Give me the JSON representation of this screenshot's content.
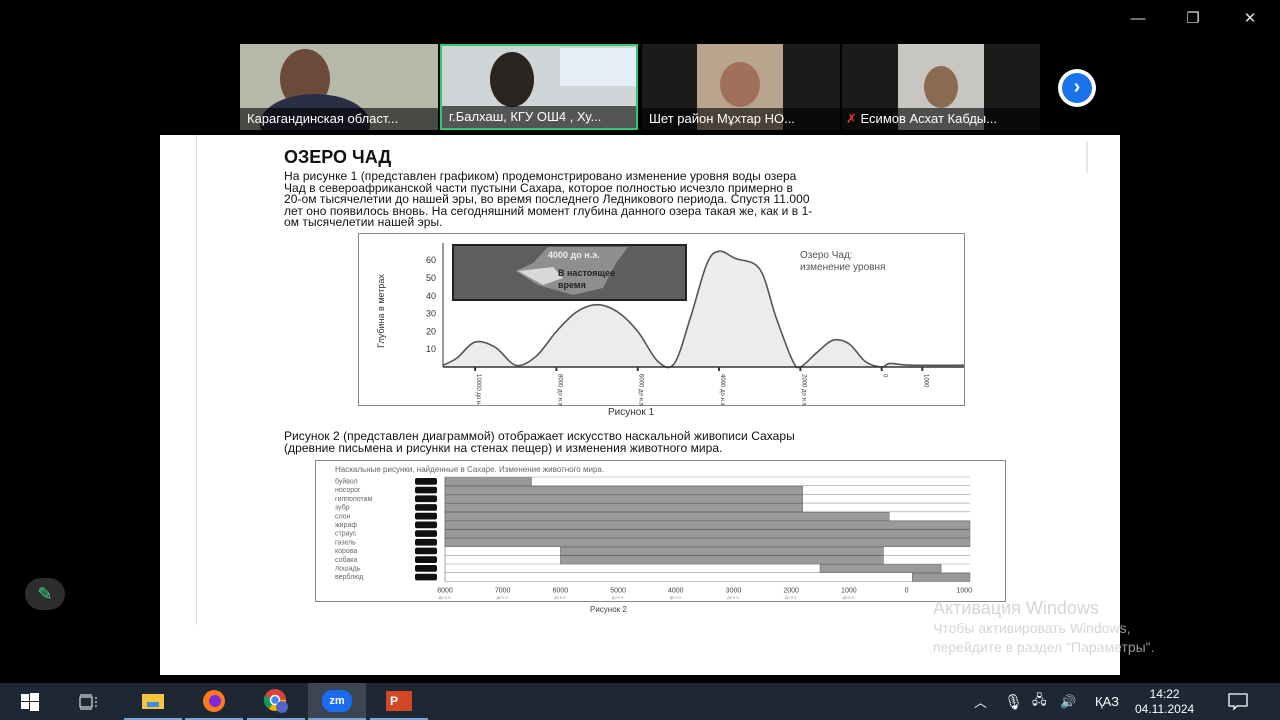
{
  "window_controls": {
    "minimize": "—",
    "restore": "❐",
    "close": "✕"
  },
  "participants": [
    {
      "name": "Карагандинская област...",
      "active": false,
      "muted": false
    },
    {
      "name": "г.Балхаш, КГУ ОШ4 , Ху...",
      "active": true,
      "muted": false
    },
    {
      "name": "Шет район Мұхтар НО...",
      "active": false,
      "muted": false
    },
    {
      "name": "Есимов Асхат Кабды...",
      "active": false,
      "muted": true
    }
  ],
  "colors": {
    "active_speaker": "#2ecc71",
    "next_button": "#1a73e8",
    "taskbar": "#1d2834"
  },
  "document": {
    "title": "ОЗЕРО ЧАД",
    "paragraph1": [
      "На рисунке 1 (представлен графиком) продемонстрировано изменение уровня воды озера",
      "Чад в североафриканской части пустыни Сахара, которое полностью исчезло примерно в",
      "20-ом тысячелетии до нашей эры, во время последнего Ледникового периода. Спустя 11.000",
      "лет оно появилось вновь. На сегодняшний момент глубина данного озера такая же, как и в 1-",
      "ом тысячелетии нашей эры."
    ],
    "paragraph2": [
      "Рисунок 2 (представлен диаграммой) отображает искусство наскальной живописи Сахары",
      "(древние письмена и рисунки на стенах пещер) и изменения животного мира."
    ]
  },
  "chart_data": [
    {
      "type": "area",
      "caption": "Рисунок 1",
      "legend": "Озеро Чад:",
      "legend2": "изменение уровня",
      "ylabel": "Глубина в метрах",
      "inset": {
        "label1": "4000 до н.э.",
        "label2": "В настоящее",
        "label3": "время"
      },
      "yticks": [
        10,
        20,
        30,
        40,
        50,
        60
      ],
      "xticks": [
        {
          "v": -10000,
          "label": "10000 до н.э."
        },
        {
          "v": -8000,
          "label": "8000 до н.э."
        },
        {
          "v": -6000,
          "label": "6000 до н.э."
        },
        {
          "v": -4000,
          "label": "4000 до н.э."
        },
        {
          "v": -2000,
          "label": "2000 до н.э."
        },
        {
          "v": 0,
          "label": "0"
        },
        {
          "v": 1000,
          "label": "1000"
        }
      ],
      "xlim": [
        -10790,
        2025
      ],
      "ylim": [
        0,
        70
      ],
      "points": [
        [
          -10790,
          1
        ],
        [
          -10450,
          5
        ],
        [
          -10000,
          14
        ],
        [
          -9500,
          11
        ],
        [
          -9000,
          1
        ],
        [
          -8500,
          6
        ],
        [
          -8000,
          20
        ],
        [
          -7500,
          31
        ],
        [
          -7000,
          35
        ],
        [
          -6500,
          31
        ],
        [
          -6000,
          20
        ],
        [
          -5500,
          3
        ],
        [
          -5100,
          2
        ],
        [
          -4700,
          28
        ],
        [
          -4300,
          58
        ],
        [
          -4000,
          65
        ],
        [
          -3600,
          61
        ],
        [
          -3000,
          55
        ],
        [
          -2600,
          28
        ],
        [
          -2200,
          4
        ],
        [
          -2000,
          0
        ],
        [
          -1600,
          8
        ],
        [
          -1200,
          15
        ],
        [
          -800,
          13
        ],
        [
          -400,
          3
        ],
        [
          0,
          0
        ],
        [
          200,
          2
        ],
        [
          700,
          1
        ],
        [
          2025,
          1
        ]
      ]
    },
    {
      "type": "bar",
      "orientation": "horizontal-range",
      "title": "Наскальные рисунки, найденные в Сахаре. Изменение животного мира.",
      "caption": "Рисунок 2",
      "xlim": [
        -8000,
        1100
      ],
      "xticks": [
        {
          "v": -8000,
          "label": "8000",
          "sub": "до н.э."
        },
        {
          "v": -7000,
          "label": "7000",
          "sub": "до н.э."
        },
        {
          "v": -6000,
          "label": "6000",
          "sub": "до н.э."
        },
        {
          "v": -5000,
          "label": "5000",
          "sub": "до н.э."
        },
        {
          "v": -4000,
          "label": "4000",
          "sub": "до н.э."
        },
        {
          "v": -3000,
          "label": "3000",
          "sub": "до н.э."
        },
        {
          "v": -2000,
          "label": "2000",
          "sub": "до н.э."
        },
        {
          "v": -1000,
          "label": "1000",
          "sub": "до н.э."
        },
        {
          "v": 0,
          "label": "0",
          "sub": ""
        },
        {
          "v": 1000,
          "label": "1000",
          "sub": ""
        }
      ],
      "rows": [
        {
          "label": "буйвол",
          "start": -8000,
          "end": -6500
        },
        {
          "label": "носорог",
          "start": -8000,
          "end": -1800
        },
        {
          "label": "гиппопотам",
          "start": -8000,
          "end": -1800
        },
        {
          "label": "зубр",
          "start": -8000,
          "end": -1800
        },
        {
          "label": "слон",
          "start": -8000,
          "end": -300
        },
        {
          "label": "жираф",
          "start": -8000,
          "end": 1100
        },
        {
          "label": "страус",
          "start": -8000,
          "end": 1100
        },
        {
          "label": "газель",
          "start": -8000,
          "end": 1100
        },
        {
          "label": "корова",
          "start": -6000,
          "end": -400
        },
        {
          "label": "собака",
          "start": -6000,
          "end": -400
        },
        {
          "label": "лошадь",
          "start": -1500,
          "end": 600
        },
        {
          "label": "верблюд",
          "start": 100,
          "end": 1100
        }
      ]
    }
  ],
  "watermark": {
    "title": "Активация Windows",
    "line1": "Чтобы активировать Windows,",
    "line2": "перейдите в раздел \"Параметры\"."
  },
  "taskbar": {
    "apps": [
      "start-icon",
      "task-view-icon",
      "file-explorer-icon",
      "firefox-icon",
      "chrome-icon",
      "zoom-icon",
      "powerpoint-icon"
    ],
    "zoom_label": "zm",
    "ppt_label": "P",
    "language": "ҚАЗ",
    "time": "14:22",
    "date": "04.11.2024"
  }
}
